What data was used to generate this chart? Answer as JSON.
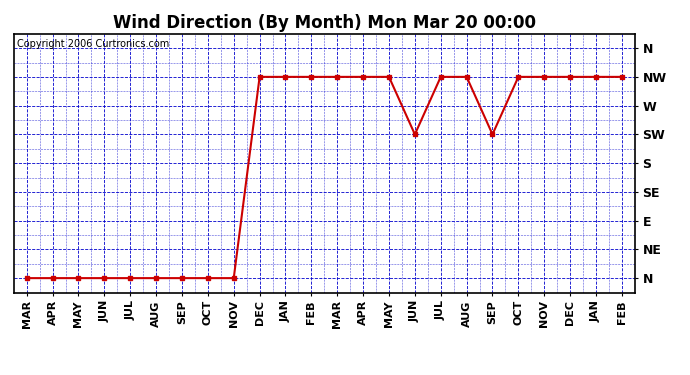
{
  "title": "Wind Direction (By Month) Mon Mar 20 00:00",
  "copyright": "Copyright 2006 Curtronics.com",
  "x_labels": [
    "MAR",
    "APR",
    "MAY",
    "JUN",
    "JUL",
    "AUG",
    "SEP",
    "OCT",
    "NOV",
    "DEC",
    "JAN",
    "FEB",
    "MAR",
    "APR",
    "MAY",
    "JUN",
    "JUL",
    "AUG",
    "SEP",
    "OCT",
    "NOV",
    "DEC",
    "JAN",
    "FEB"
  ],
  "y_labels": [
    "N",
    "NE",
    "E",
    "SE",
    "S",
    "SW",
    "W",
    "NW",
    "N"
  ],
  "y_values": [
    0,
    1,
    2,
    3,
    4,
    5,
    6,
    7,
    8
  ],
  "data_values": [
    0,
    0,
    0,
    0,
    0,
    0,
    0,
    0,
    0,
    7,
    7,
    7,
    7,
    7,
    7,
    5,
    7,
    7,
    5,
    7,
    7,
    7,
    7,
    7
  ],
  "line_color": "#cc0000",
  "marker_color": "#cc0000",
  "grid_color": "#0000cc",
  "background_color": "#ffffff",
  "title_fontsize": 12,
  "copyright_fontsize": 7,
  "axis_label_fontsize": 8,
  "ytick_fontsize": 9
}
